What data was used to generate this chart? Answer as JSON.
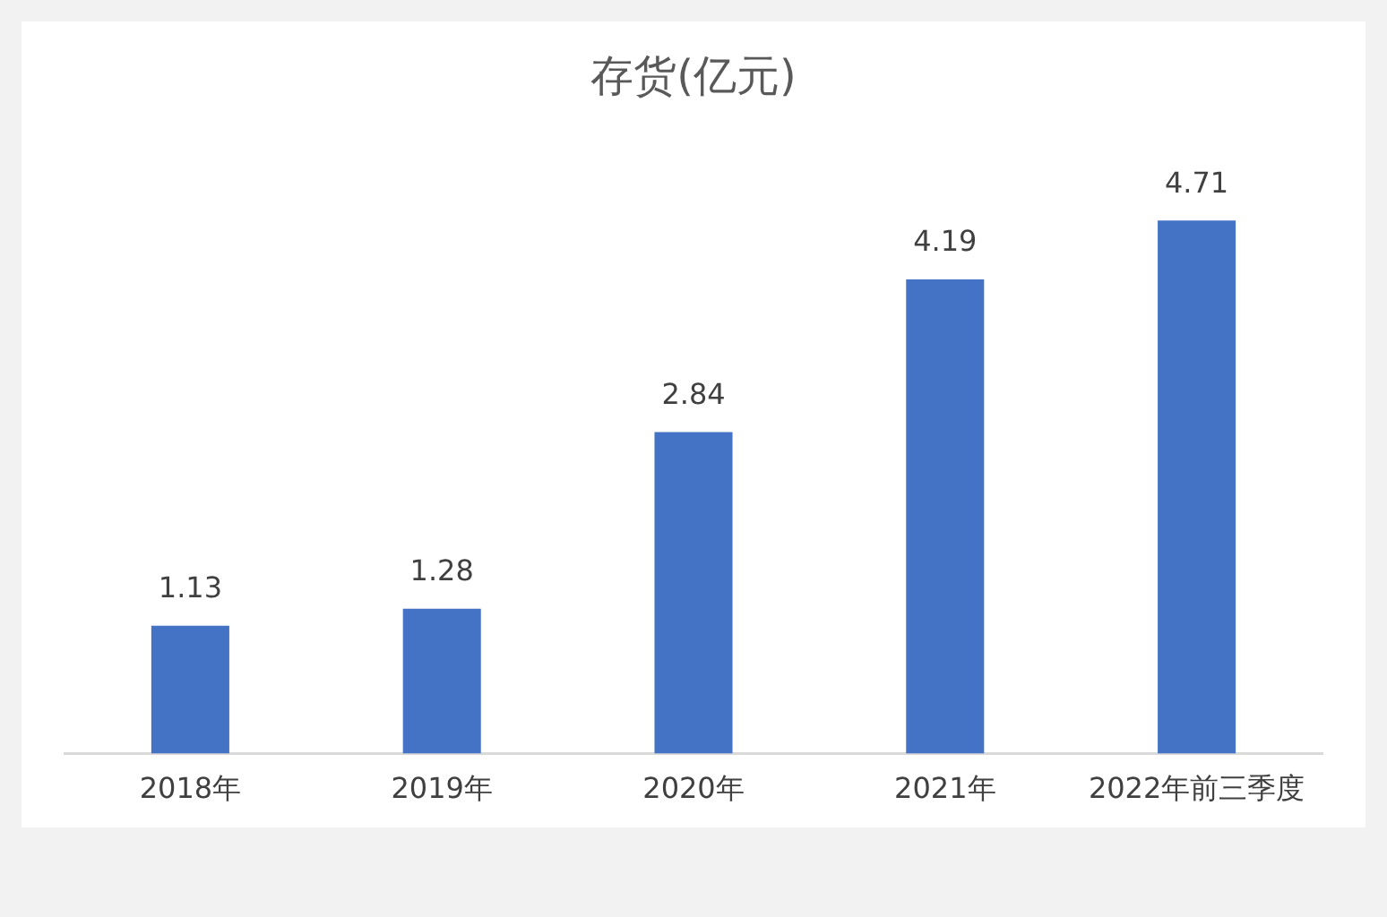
{
  "chart_data": {
    "type": "bar",
    "title": "存货(亿元)",
    "categories": [
      "2018年",
      "2019年",
      "2020年",
      "2021年",
      "2022年前三季度"
    ],
    "values": [
      1.13,
      1.28,
      2.84,
      4.19,
      4.71
    ],
    "color": "#4472c4",
    "data_labels": true,
    "grid": false,
    "legend": false
  }
}
